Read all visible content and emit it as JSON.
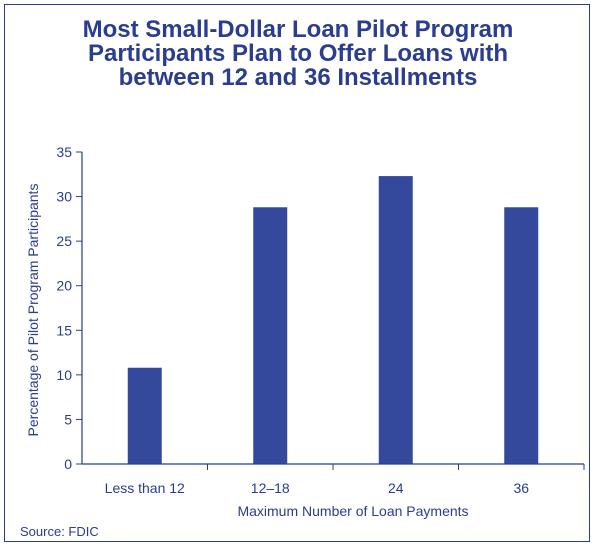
{
  "chart_data": {
    "type": "bar",
    "title_lines": [
      "Most Small-Dollar Loan Pilot Program",
      "Participants Plan to Offer Loans with",
      "between 12 and 36 Installments"
    ],
    "categories": [
      "Less than 12",
      "12–18",
      "24",
      "36"
    ],
    "values": [
      10.8,
      28.8,
      32.3,
      28.8
    ],
    "xlabel": "Maximum Number of Loan Payments",
    "ylabel": "Percentage of Pilot Program Participants",
    "ylim": [
      0,
      35
    ],
    "yticks": [
      0,
      5,
      10,
      15,
      20,
      25,
      30,
      35
    ],
    "ytick_labels": [
      "0",
      "5",
      "10",
      "15",
      "20",
      "25",
      "30",
      "35"
    ],
    "grid": false,
    "source": "Source: FDIC"
  },
  "colors": {
    "bar": "#34499b",
    "axis": "#2a3d8f",
    "text": "#2a3d8f"
  }
}
